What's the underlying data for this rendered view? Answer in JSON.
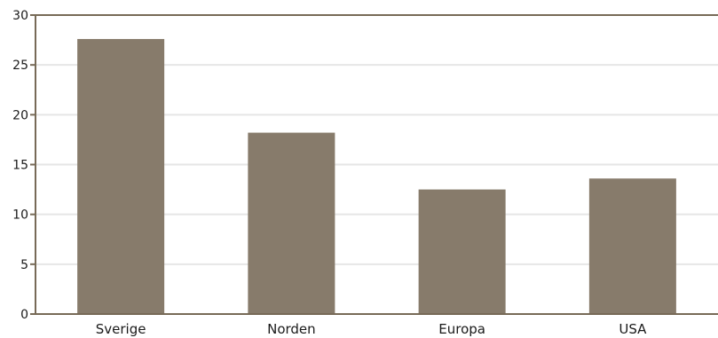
{
  "chart_data": {
    "type": "bar",
    "categories": [
      "Sverige",
      "Norden",
      "Europa",
      "USA"
    ],
    "values": [
      27.6,
      18.2,
      12.5,
      13.6
    ],
    "ylim": [
      0,
      30
    ],
    "yticks": [
      0,
      5,
      10,
      15,
      20,
      25,
      30
    ],
    "title": "",
    "xlabel": "",
    "ylabel": "",
    "grid": true,
    "colors": {
      "bar": "#877b6b",
      "axis": "#776a57",
      "grid": "#e6e6e6"
    }
  }
}
